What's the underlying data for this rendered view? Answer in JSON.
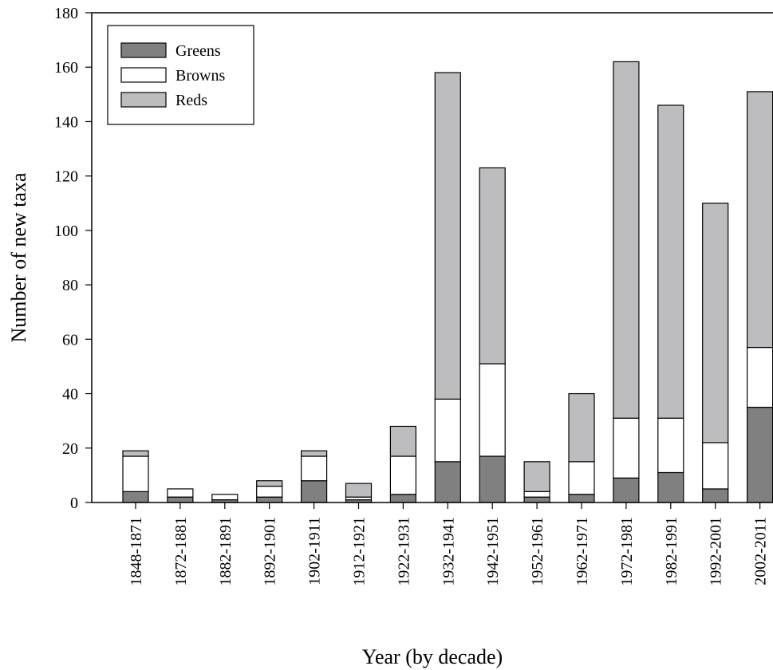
{
  "chart_data": {
    "type": "bar",
    "stacked": true,
    "title": "",
    "xlabel": "Year (by decade)",
    "ylabel": "Number of new taxa",
    "ylim": [
      0,
      180
    ],
    "yticks": [
      0,
      20,
      40,
      60,
      80,
      100,
      120,
      140,
      160,
      180
    ],
    "grid": false,
    "legend_position": "top-left",
    "categories": [
      "1848-1871",
      "1872-1881",
      "1882-1891",
      "1892-1901",
      "1902-1911",
      "1912-1921",
      "1922-1931",
      "1932-1941",
      "1942-1951",
      "1952-1961",
      "1962-1971",
      "1972-1981",
      "1982-1991",
      "1992-2001",
      "2002-2011"
    ],
    "series": [
      {
        "name": "Greens",
        "color": "#808080",
        "values": [
          4,
          2,
          1,
          2,
          8,
          1,
          3,
          15,
          17,
          2,
          3,
          9,
          11,
          5,
          35
        ]
      },
      {
        "name": "Browns",
        "color": "#ffffff",
        "values": [
          13,
          3,
          2,
          4,
          9,
          1,
          14,
          23,
          34,
          2,
          12,
          22,
          20,
          17,
          22
        ]
      },
      {
        "name": "Reds",
        "color": "#bdbdbf",
        "values": [
          2,
          0,
          0,
          2,
          2,
          5,
          11,
          120,
          72,
          11,
          25,
          131,
          115,
          88,
          94
        ]
      }
    ]
  }
}
